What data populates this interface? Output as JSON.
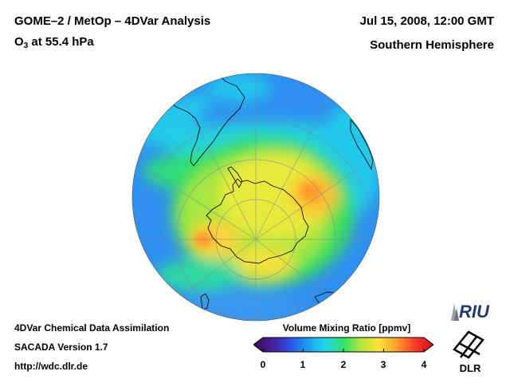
{
  "header": {
    "title": "GOME–2 / MetOp – 4DVar Analysis",
    "subtitle_prefix": "O",
    "subtitle_sub": "3",
    "subtitle_suffix": " at 55.4 hPa",
    "date": "Jul 15, 2008, 12:00 GMT",
    "region": "Southern Hemisphere"
  },
  "footer": {
    "line1": "4DVar Chemical Data Assimilation",
    "line2": "SACADA Version 1.7",
    "line3": "http://wdc.dlr.de"
  },
  "colorbar": {
    "title": "Volume Mixing Ratio [ppmv]",
    "ticks": [
      "0",
      "1",
      "2",
      "3",
      "4"
    ],
    "colors": [
      "#3b0a55",
      "#4b1c9a",
      "#2a4fe0",
      "#1e9cf0",
      "#22d8e8",
      "#2fe06a",
      "#b8e83a",
      "#ffe23a",
      "#ff9a2a",
      "#ff3a2a",
      "#c40d1a"
    ]
  },
  "logos": {
    "riu": "RIU",
    "dlr": "DLR"
  }
}
